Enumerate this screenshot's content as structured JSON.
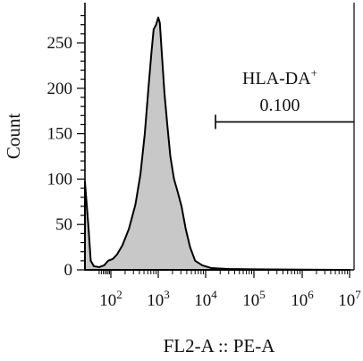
{
  "chart_data": {
    "type": "area",
    "title": "",
    "xlabel": "FL2-A :: PE-A",
    "ylabel": "Count",
    "x_scale": "biexponential",
    "xlim": [
      0,
      10000000
    ],
    "ylim": [
      0,
      290
    ],
    "y_ticks": [
      0,
      50,
      100,
      150,
      200,
      250
    ],
    "x_ticks": [
      {
        "base": "10",
        "exp": "2",
        "value": 100
      },
      {
        "base": "10",
        "exp": "3",
        "value": 1000
      },
      {
        "base": "10",
        "exp": "4",
        "value": 10000
      },
      {
        "base": "10",
        "exp": "5",
        "value": 100000
      },
      {
        "base": "10",
        "exp": "6",
        "value": 1000000
      },
      {
        "base": "10",
        "exp": "7",
        "value": 10000000
      }
    ],
    "series": [
      {
        "fill": "#c8c8c8",
        "stroke": "#000000",
        "points": [
          {
            "x": 0,
            "y": 97
          },
          {
            "x": 2,
            "y": 45
          },
          {
            "x": 5,
            "y": 10
          },
          {
            "x": 12,
            "y": 4
          },
          {
            "x": 30,
            "y": 3
          },
          {
            "x": 55,
            "y": 5
          },
          {
            "x": 80,
            "y": 10
          },
          {
            "x": 110,
            "y": 12
          },
          {
            "x": 135,
            "y": 17
          },
          {
            "x": 175,
            "y": 27
          },
          {
            "x": 240,
            "y": 45
          },
          {
            "x": 330,
            "y": 72
          },
          {
            "x": 420,
            "y": 105
          },
          {
            "x": 520,
            "y": 150
          },
          {
            "x": 620,
            "y": 200
          },
          {
            "x": 720,
            "y": 240
          },
          {
            "x": 800,
            "y": 265
          },
          {
            "x": 900,
            "y": 270
          },
          {
            "x": 1000,
            "y": 278
          },
          {
            "x": 1080,
            "y": 272
          },
          {
            "x": 1200,
            "y": 235
          },
          {
            "x": 1350,
            "y": 195
          },
          {
            "x": 1550,
            "y": 160
          },
          {
            "x": 1800,
            "y": 125
          },
          {
            "x": 2150,
            "y": 100
          },
          {
            "x": 2600,
            "y": 85
          },
          {
            "x": 3100,
            "y": 70
          },
          {
            "x": 3800,
            "y": 45
          },
          {
            "x": 4700,
            "y": 25
          },
          {
            "x": 6000,
            "y": 10
          },
          {
            "x": 8500,
            "y": 5
          },
          {
            "x": 13000,
            "y": 2
          },
          {
            "x": 30000,
            "y": 1
          },
          {
            "x": 100000,
            "y": 0.6
          },
          {
            "x": 1000000,
            "y": 0.3
          },
          {
            "x": 10000000,
            "y": 0
          }
        ]
      }
    ],
    "gate": {
      "name": "HLA-DA",
      "name_sup": "+",
      "value": "0.100",
      "x_start": 16000,
      "x_end": 10000000,
      "y": 163
    }
  }
}
